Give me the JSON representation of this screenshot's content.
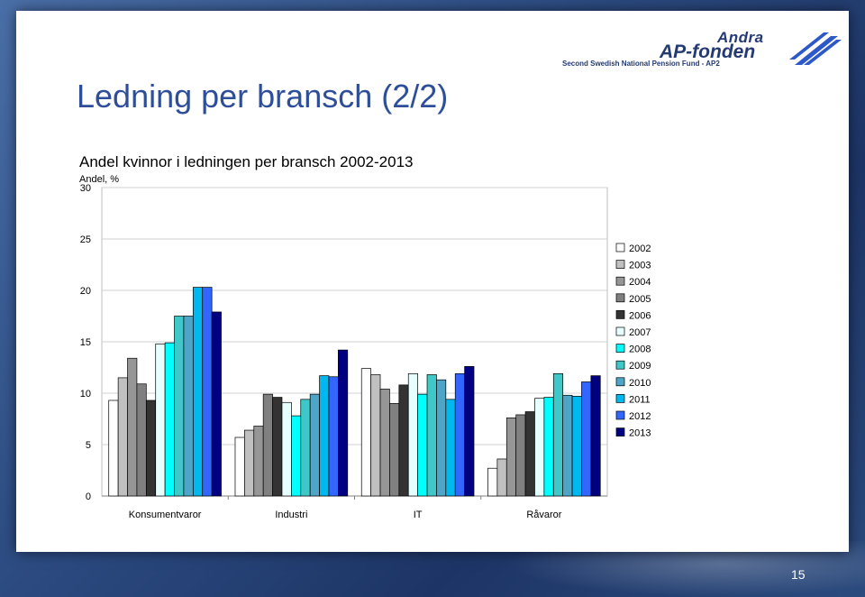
{
  "slide": {
    "title": "Ledning per bransch (2/2)",
    "page_number": "15",
    "logo": {
      "name_line1": "Andra",
      "name_line2": "AP-fonden",
      "tagline": "Second Swedish National Pension Fund - AP2"
    }
  },
  "chart_data": {
    "type": "bar",
    "title": "Andel kvinnor i ledningen per bransch 2002-2013",
    "unit_label": "Andel, %",
    "ylim": [
      0,
      30
    ],
    "yticks": [
      0,
      5,
      10,
      15,
      20,
      25,
      30
    ],
    "grid": true,
    "legend_position": "right",
    "categories": [
      "Konsumentvaror",
      "Industri",
      "IT",
      "Råvaror"
    ],
    "series": [
      {
        "name": "2002",
        "color": "#ffffff",
        "values": [
          9.3,
          5.7,
          12.4,
          2.7
        ]
      },
      {
        "name": "2003",
        "color": "#c0c0c0",
        "values": [
          11.5,
          6.4,
          11.8,
          3.6
        ]
      },
      {
        "name": "2004",
        "color": "#969696",
        "values": [
          13.4,
          6.8,
          10.4,
          7.6
        ]
      },
      {
        "name": "2005",
        "color": "#808080",
        "values": [
          10.9,
          9.9,
          9.0,
          7.9
        ]
      },
      {
        "name": "2006",
        "color": "#333333",
        "values": [
          9.3,
          9.6,
          10.8,
          8.2
        ]
      },
      {
        "name": "2007",
        "color": "#e6ffff",
        "values": [
          14.8,
          9.1,
          11.9,
          9.5
        ]
      },
      {
        "name": "2008",
        "color": "#00ffff",
        "values": [
          14.9,
          7.8,
          9.9,
          9.6
        ]
      },
      {
        "name": "2009",
        "color": "#40c8c8",
        "values": [
          17.5,
          9.4,
          11.8,
          11.9
        ]
      },
      {
        "name": "2010",
        "color": "#4da6c8",
        "values": [
          17.5,
          9.9,
          11.3,
          9.8
        ]
      },
      {
        "name": "2011",
        "color": "#00b8f0",
        "values": [
          20.3,
          11.7,
          9.4,
          9.7
        ]
      },
      {
        "name": "2012",
        "color": "#3366ff",
        "values": [
          20.3,
          11.6,
          11.9,
          11.1
        ]
      },
      {
        "name": "2013",
        "color": "#000080",
        "values": [
          17.9,
          14.2,
          12.6,
          11.7
        ]
      }
    ]
  }
}
